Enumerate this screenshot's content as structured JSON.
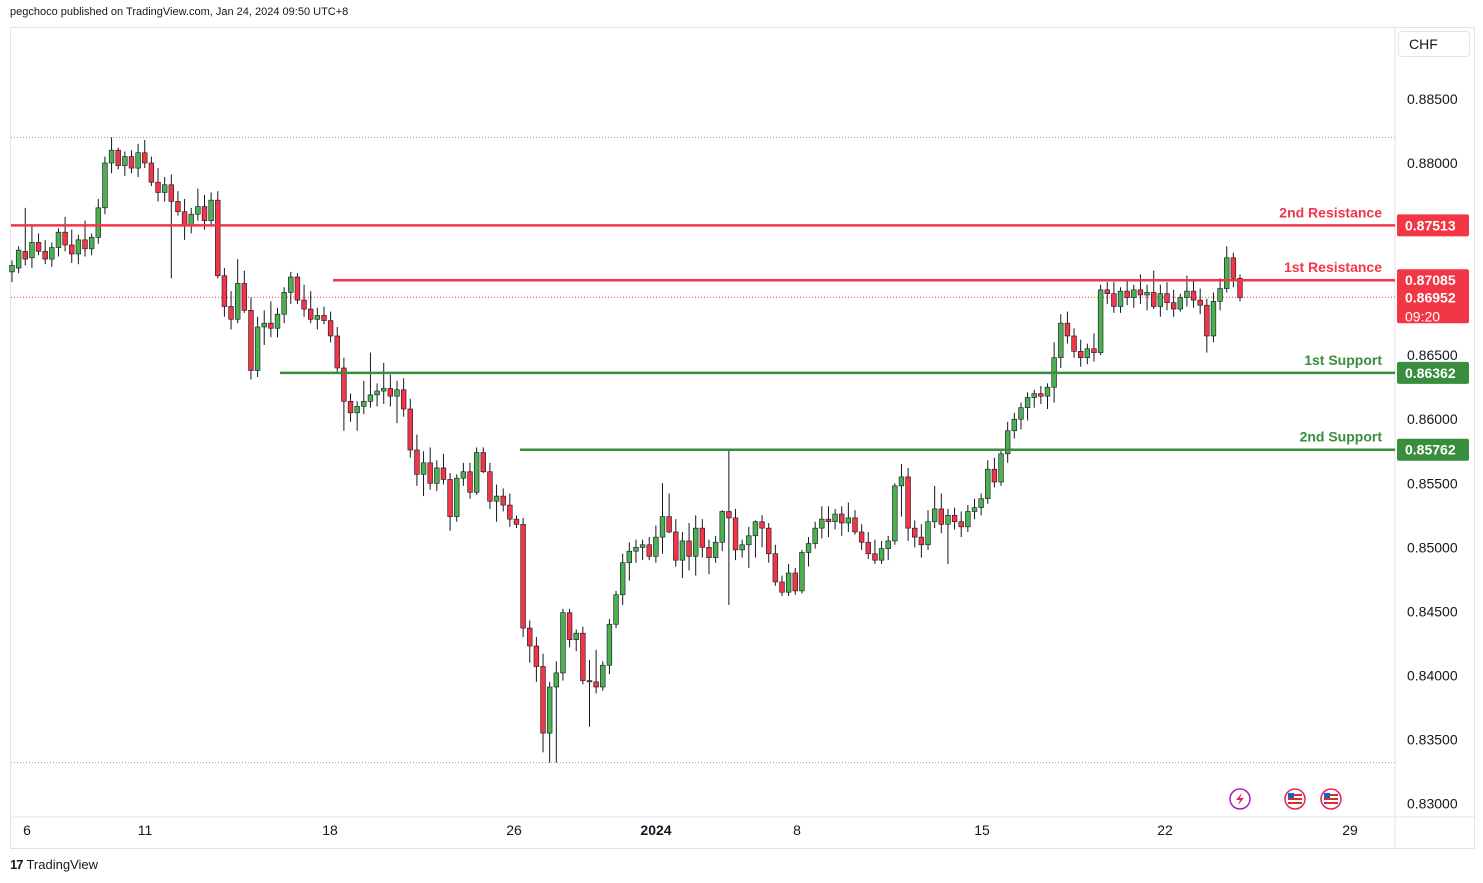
{
  "header": {
    "published_text": "pegchoco published on TradingView.com, Jan 24, 2024 09:50 UTC+8"
  },
  "currency": "CHF",
  "footer": {
    "brand": "TradingView"
  },
  "colors": {
    "up": "#4caf50",
    "down": "#f23645",
    "resistance": "#f23645",
    "support": "#388e3c",
    "grid": "#e0e3eb"
  },
  "icons": [
    "lightning-event-icon",
    "us-flag-event-icon",
    "us-flag-event-icon"
  ],
  "chart_data": {
    "type": "candlestick",
    "ylim": [
      0.8295,
      0.8896
    ],
    "y_ticks": [
      "0.88500",
      "0.88000",
      "0.87500",
      "0.87000",
      "0.86500",
      "0.86000",
      "0.85500",
      "0.85000",
      "0.84500",
      "0.84000",
      "0.83500",
      "0.83000"
    ],
    "x_ticks": [
      "6",
      "11",
      "18",
      "26",
      "2024",
      "8",
      "15",
      "22",
      "29"
    ],
    "levels": [
      {
        "label": "2nd Resistance",
        "value": "0.87513",
        "kind": "resistance"
      },
      {
        "label": "1st Resistance",
        "value": "0.87085",
        "kind": "resistance"
      },
      {
        "label": "1st Support",
        "value": "0.86362",
        "kind": "support"
      },
      {
        "label": "2nd Support",
        "value": "0.85762",
        "kind": "support"
      }
    ],
    "current_price": {
      "value": "0.86952",
      "countdown": "09:20"
    },
    "range_high": 0.882,
    "range_low": 0.8332,
    "candles": [
      [
        0.8715,
        0.8724,
        0.8707,
        0.872
      ],
      [
        0.8718,
        0.8735,
        0.8714,
        0.8732
      ],
      [
        0.8731,
        0.8765,
        0.872,
        0.8725
      ],
      [
        0.8726,
        0.8752,
        0.8718,
        0.8738
      ],
      [
        0.8738,
        0.8745,
        0.8728,
        0.8731
      ],
      [
        0.8731,
        0.874,
        0.8721,
        0.8725
      ],
      [
        0.8725,
        0.8738,
        0.8719,
        0.8734
      ],
      [
        0.8734,
        0.8749,
        0.8727,
        0.8746
      ],
      [
        0.8746,
        0.8758,
        0.8731,
        0.8736
      ],
      [
        0.8736,
        0.8748,
        0.8722,
        0.8729
      ],
      [
        0.8729,
        0.8744,
        0.8721,
        0.874
      ],
      [
        0.874,
        0.8755,
        0.8727,
        0.8733
      ],
      [
        0.8733,
        0.8745,
        0.8728,
        0.8742
      ],
      [
        0.8742,
        0.8772,
        0.8737,
        0.8765
      ],
      [
        0.8765,
        0.8805,
        0.876,
        0.88
      ],
      [
        0.88,
        0.882,
        0.8792,
        0.881
      ],
      [
        0.881,
        0.8812,
        0.8795,
        0.8798
      ],
      [
        0.8798,
        0.8809,
        0.879,
        0.8805
      ],
      [
        0.8805,
        0.881,
        0.8792,
        0.8796
      ],
      [
        0.8796,
        0.8815,
        0.8789,
        0.8808
      ],
      [
        0.8808,
        0.8818,
        0.8796,
        0.88
      ],
      [
        0.88,
        0.8805,
        0.8782,
        0.8785
      ],
      [
        0.8785,
        0.8796,
        0.877,
        0.8777
      ],
      [
        0.8777,
        0.8789,
        0.877,
        0.8783
      ],
      [
        0.8783,
        0.8791,
        0.871,
        0.877
      ],
      [
        0.877,
        0.8778,
        0.8759,
        0.8762
      ],
      [
        0.8762,
        0.8772,
        0.874,
        0.8751
      ],
      [
        0.8751,
        0.8765,
        0.8745,
        0.876
      ],
      [
        0.876,
        0.878,
        0.8755,
        0.8766
      ],
      [
        0.8766,
        0.8775,
        0.8748,
        0.8755
      ],
      [
        0.8755,
        0.8777,
        0.8751,
        0.8771
      ],
      [
        0.8771,
        0.8778,
        0.871,
        0.8712
      ],
      [
        0.8712,
        0.8718,
        0.868,
        0.8688
      ],
      [
        0.8688,
        0.87,
        0.867,
        0.8678
      ],
      [
        0.8678,
        0.8725,
        0.8675,
        0.8706
      ],
      [
        0.8706,
        0.8716,
        0.8683,
        0.8685
      ],
      [
        0.8685,
        0.8695,
        0.8631,
        0.8638
      ],
      [
        0.8638,
        0.868,
        0.8633,
        0.8672
      ],
      [
        0.8672,
        0.8685,
        0.8658,
        0.8675
      ],
      [
        0.8675,
        0.8692,
        0.8664,
        0.8671
      ],
      [
        0.8671,
        0.8687,
        0.8664,
        0.8682
      ],
      [
        0.8682,
        0.8703,
        0.8675,
        0.8699
      ],
      [
        0.8699,
        0.8715,
        0.869,
        0.8711
      ],
      [
        0.8711,
        0.8714,
        0.869,
        0.8693
      ],
      [
        0.8693,
        0.8705,
        0.868,
        0.8686
      ],
      [
        0.8686,
        0.87,
        0.8675,
        0.8678
      ],
      [
        0.8678,
        0.8687,
        0.867,
        0.8681
      ],
      [
        0.8681,
        0.8688,
        0.8674,
        0.8677
      ],
      [
        0.8677,
        0.8684,
        0.866,
        0.8665
      ],
      [
        0.8665,
        0.8672,
        0.8636,
        0.864
      ],
      [
        0.864,
        0.8648,
        0.8591,
        0.8614
      ],
      [
        0.8614,
        0.862,
        0.8598,
        0.8605
      ],
      [
        0.8605,
        0.8614,
        0.8591,
        0.861
      ],
      [
        0.861,
        0.863,
        0.8604,
        0.8614
      ],
      [
        0.8614,
        0.8652,
        0.8609,
        0.8619
      ],
      [
        0.8619,
        0.8628,
        0.861,
        0.8622
      ],
      [
        0.8622,
        0.8644,
        0.8612,
        0.8624
      ],
      [
        0.8624,
        0.8635,
        0.861,
        0.8618
      ],
      [
        0.8618,
        0.863,
        0.8597,
        0.8623
      ],
      [
        0.8623,
        0.8632,
        0.8602,
        0.8608
      ],
      [
        0.8608,
        0.8616,
        0.857,
        0.8576
      ],
      [
        0.8576,
        0.8588,
        0.8548,
        0.8557
      ],
      [
        0.8557,
        0.8575,
        0.854,
        0.8566
      ],
      [
        0.8566,
        0.8578,
        0.8545,
        0.855
      ],
      [
        0.855,
        0.8568,
        0.8544,
        0.8562
      ],
      [
        0.8562,
        0.8573,
        0.8549,
        0.8553
      ],
      [
        0.8553,
        0.8558,
        0.8513,
        0.8524
      ],
      [
        0.8524,
        0.8557,
        0.852,
        0.8554
      ],
      [
        0.8554,
        0.8566,
        0.8548,
        0.8559
      ],
      [
        0.8559,
        0.8566,
        0.8538,
        0.8543
      ],
      [
        0.8543,
        0.8578,
        0.8541,
        0.8574
      ],
      [
        0.8574,
        0.8578,
        0.8558,
        0.8559
      ],
      [
        0.8559,
        0.8566,
        0.853,
        0.8536
      ],
      [
        0.8536,
        0.8549,
        0.852,
        0.854
      ],
      [
        0.854,
        0.8546,
        0.8528,
        0.8533
      ],
      [
        0.8533,
        0.8542,
        0.8516,
        0.8522
      ],
      [
        0.8522,
        0.8525,
        0.8515,
        0.8518
      ],
      [
        0.8518,
        0.8523,
        0.843,
        0.8437
      ],
      [
        0.8437,
        0.8443,
        0.841,
        0.8423
      ],
      [
        0.8423,
        0.843,
        0.8395,
        0.8407
      ],
      [
        0.8407,
        0.8417,
        0.834,
        0.8355
      ],
      [
        0.8355,
        0.8395,
        0.8332,
        0.8391
      ],
      [
        0.8391,
        0.8411,
        0.8332,
        0.8402
      ],
      [
        0.8402,
        0.8452,
        0.8396,
        0.8449
      ],
      [
        0.8449,
        0.8452,
        0.8422,
        0.8428
      ],
      [
        0.8428,
        0.8436,
        0.8419,
        0.8433
      ],
      [
        0.8433,
        0.8438,
        0.8393,
        0.8396
      ],
      [
        0.8396,
        0.8412,
        0.836,
        0.8395
      ],
      [
        0.8395,
        0.842,
        0.8386,
        0.8391
      ],
      [
        0.8391,
        0.8411,
        0.8388,
        0.8408
      ],
      [
        0.8408,
        0.8444,
        0.8401,
        0.844
      ],
      [
        0.844,
        0.8466,
        0.8437,
        0.8463
      ],
      [
        0.8463,
        0.8495,
        0.8455,
        0.8488
      ],
      [
        0.8488,
        0.8504,
        0.8474,
        0.8497
      ],
      [
        0.8497,
        0.8506,
        0.8488,
        0.85
      ],
      [
        0.85,
        0.8506,
        0.849,
        0.8502
      ],
      [
        0.8502,
        0.8508,
        0.849,
        0.8493
      ],
      [
        0.8493,
        0.8517,
        0.8488,
        0.8508
      ],
      [
        0.8508,
        0.855,
        0.8495,
        0.8524
      ],
      [
        0.8524,
        0.8542,
        0.8511,
        0.8512
      ],
      [
        0.8512,
        0.8522,
        0.8485,
        0.849
      ],
      [
        0.849,
        0.8512,
        0.8476,
        0.8505
      ],
      [
        0.8505,
        0.8519,
        0.8482,
        0.8493
      ],
      [
        0.8493,
        0.8525,
        0.8478,
        0.8515
      ],
      [
        0.8515,
        0.8522,
        0.8492,
        0.85
      ],
      [
        0.85,
        0.8506,
        0.8479,
        0.8492
      ],
      [
        0.8492,
        0.8509,
        0.8488,
        0.8504
      ],
      [
        0.8504,
        0.8529,
        0.8497,
        0.8528
      ],
      [
        0.8528,
        0.8576,
        0.8455,
        0.8523
      ],
      [
        0.8523,
        0.853,
        0.849,
        0.8498
      ],
      [
        0.8498,
        0.8506,
        0.8492,
        0.8502
      ],
      [
        0.8502,
        0.8516,
        0.8484,
        0.8509
      ],
      [
        0.8509,
        0.8521,
        0.8492,
        0.852
      ],
      [
        0.852,
        0.8525,
        0.85,
        0.8515
      ],
      [
        0.8515,
        0.8519,
        0.8488,
        0.8495
      ],
      [
        0.8495,
        0.8502,
        0.847,
        0.8473
      ],
      [
        0.8473,
        0.8478,
        0.8462,
        0.8465
      ],
      [
        0.8465,
        0.8487,
        0.8462,
        0.848
      ],
      [
        0.848,
        0.8484,
        0.8463,
        0.8466
      ],
      [
        0.8466,
        0.8498,
        0.8464,
        0.8496
      ],
      [
        0.8496,
        0.8508,
        0.8485,
        0.8503
      ],
      [
        0.8503,
        0.852,
        0.8499,
        0.8515
      ],
      [
        0.8515,
        0.8532,
        0.8507,
        0.8522
      ],
      [
        0.8522,
        0.8532,
        0.8508,
        0.852
      ],
      [
        0.852,
        0.853,
        0.8514,
        0.8526
      ],
      [
        0.8526,
        0.8532,
        0.8509,
        0.8519
      ],
      [
        0.8519,
        0.8535,
        0.8512,
        0.8523
      ],
      [
        0.8523,
        0.8529,
        0.851,
        0.8512
      ],
      [
        0.8512,
        0.8518,
        0.8498,
        0.8504
      ],
      [
        0.8504,
        0.8512,
        0.8491,
        0.8495
      ],
      [
        0.8495,
        0.8506,
        0.8487,
        0.849
      ],
      [
        0.849,
        0.8505,
        0.8487,
        0.8499
      ],
      [
        0.8499,
        0.8509,
        0.849,
        0.8505
      ],
      [
        0.8505,
        0.855,
        0.8502,
        0.8548
      ],
      [
        0.8548,
        0.8565,
        0.8524,
        0.8555
      ],
      [
        0.8555,
        0.8562,
        0.8505,
        0.8515
      ],
      [
        0.8515,
        0.8521,
        0.85,
        0.8508
      ],
      [
        0.8508,
        0.8518,
        0.8492,
        0.8502
      ],
      [
        0.8502,
        0.8529,
        0.8498,
        0.852
      ],
      [
        0.852,
        0.8548,
        0.8515,
        0.853
      ],
      [
        0.853,
        0.8542,
        0.8511,
        0.8518
      ],
      [
        0.8518,
        0.853,
        0.8487,
        0.8525
      ],
      [
        0.8525,
        0.8531,
        0.8514,
        0.852
      ],
      [
        0.852,
        0.8528,
        0.8508,
        0.8516
      ],
      [
        0.8516,
        0.8533,
        0.8512,
        0.8528
      ],
      [
        0.8528,
        0.8538,
        0.8522,
        0.8531
      ],
      [
        0.8531,
        0.8542,
        0.8525,
        0.8538
      ],
      [
        0.8538,
        0.8568,
        0.8534,
        0.8561
      ],
      [
        0.8561,
        0.857,
        0.8547,
        0.8551
      ],
      [
        0.8551,
        0.8577,
        0.8548,
        0.8573
      ],
      [
        0.8573,
        0.8598,
        0.8566,
        0.8591
      ],
      [
        0.8591,
        0.8605,
        0.8585,
        0.86
      ],
      [
        0.86,
        0.8613,
        0.8592,
        0.8609
      ],
      [
        0.8609,
        0.8621,
        0.8599,
        0.8617
      ],
      [
        0.8617,
        0.8623,
        0.8609,
        0.862
      ],
      [
        0.862,
        0.8626,
        0.8612,
        0.8618
      ],
      [
        0.8618,
        0.8628,
        0.8608,
        0.8625
      ],
      [
        0.8625,
        0.866,
        0.8613,
        0.8648
      ],
      [
        0.8648,
        0.8682,
        0.864,
        0.8675
      ],
      [
        0.8675,
        0.8684,
        0.8659,
        0.8665
      ],
      [
        0.8665,
        0.8671,
        0.8648,
        0.8653
      ],
      [
        0.8653,
        0.8662,
        0.8641,
        0.8648
      ],
      [
        0.8648,
        0.8659,
        0.8643,
        0.8655
      ],
      [
        0.8655,
        0.8667,
        0.8645,
        0.8652
      ],
      [
        0.8652,
        0.8705,
        0.865,
        0.8701
      ],
      [
        0.8701,
        0.8707,
        0.869,
        0.8698
      ],
      [
        0.8698,
        0.8707,
        0.8683,
        0.8688
      ],
      [
        0.8688,
        0.8703,
        0.8683,
        0.87
      ],
      [
        0.87,
        0.8708,
        0.8689,
        0.8695
      ],
      [
        0.8695,
        0.8705,
        0.8687,
        0.8701
      ],
      [
        0.8701,
        0.8713,
        0.869,
        0.8697
      ],
      [
        0.8697,
        0.8705,
        0.8685,
        0.8699
      ],
      [
        0.8699,
        0.8716,
        0.8686,
        0.8688
      ],
      [
        0.8688,
        0.8705,
        0.868,
        0.8698
      ],
      [
        0.8698,
        0.8707,
        0.8685,
        0.8691
      ],
      [
        0.8691,
        0.8701,
        0.868,
        0.8686
      ],
      [
        0.8686,
        0.8698,
        0.8684,
        0.8695
      ],
      [
        0.8695,
        0.8712,
        0.8688,
        0.87
      ],
      [
        0.87,
        0.8709,
        0.8687,
        0.8693
      ],
      [
        0.8693,
        0.8702,
        0.8682,
        0.8689
      ],
      [
        0.8689,
        0.8694,
        0.8652,
        0.8665
      ],
      [
        0.8665,
        0.8699,
        0.866,
        0.8692
      ],
      [
        0.8692,
        0.871,
        0.8685,
        0.8702
      ],
      [
        0.8702,
        0.8735,
        0.8699,
        0.8726
      ],
      [
        0.8726,
        0.873,
        0.8703,
        0.871
      ],
      [
        0.871,
        0.8713,
        0.8692,
        0.8695
      ]
    ]
  }
}
